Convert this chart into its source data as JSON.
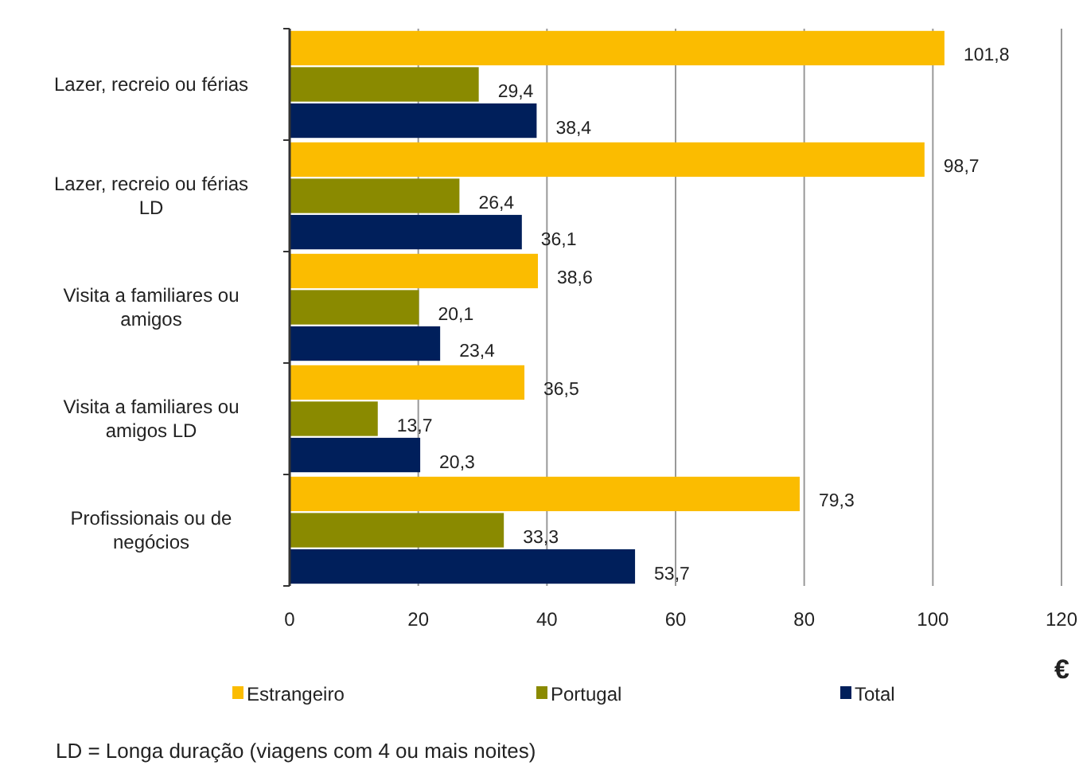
{
  "chart_data": {
    "type": "bar",
    "orientation": "horizontal",
    "xlabel": "€",
    "categories": [
      "Lazer, recreio ou férias",
      "Lazer, recreio  ou férias LD",
      "Visita a familiares  ou amigos",
      "Visita a familiares ou amigos LD",
      "Profissionais ou de negócios"
    ],
    "series": [
      {
        "name": "Estrangeiro",
        "color": "#fbbc00",
        "values": [
          101.8,
          98.7,
          38.6,
          36.5,
          79.3
        ],
        "value_labels": [
          "101,8",
          "98,7",
          "38,6",
          "36,5",
          "79,3"
        ]
      },
      {
        "name": "Portugal",
        "color": "#8a8a00",
        "values": [
          29.4,
          26.4,
          20.1,
          13.7,
          33.3
        ],
        "value_labels": [
          "29,4",
          "26,4",
          "20,1",
          "13,7",
          "33,3"
        ]
      },
      {
        "name": "Total",
        "color": "#001f5b",
        "values": [
          38.4,
          36.1,
          23.4,
          20.3,
          53.7
        ],
        "value_labels": [
          "38,4",
          "36,1",
          "23,4",
          "20,3",
          "53,7"
        ]
      }
    ],
    "xlim": [
      0,
      120
    ],
    "xticks": [
      0,
      20,
      40,
      60,
      80,
      100,
      120
    ],
    "grid": "x",
    "legend": "bottom",
    "annotations": [
      "LD = Longa duração (viagens com 4 ou mais noites)"
    ]
  }
}
